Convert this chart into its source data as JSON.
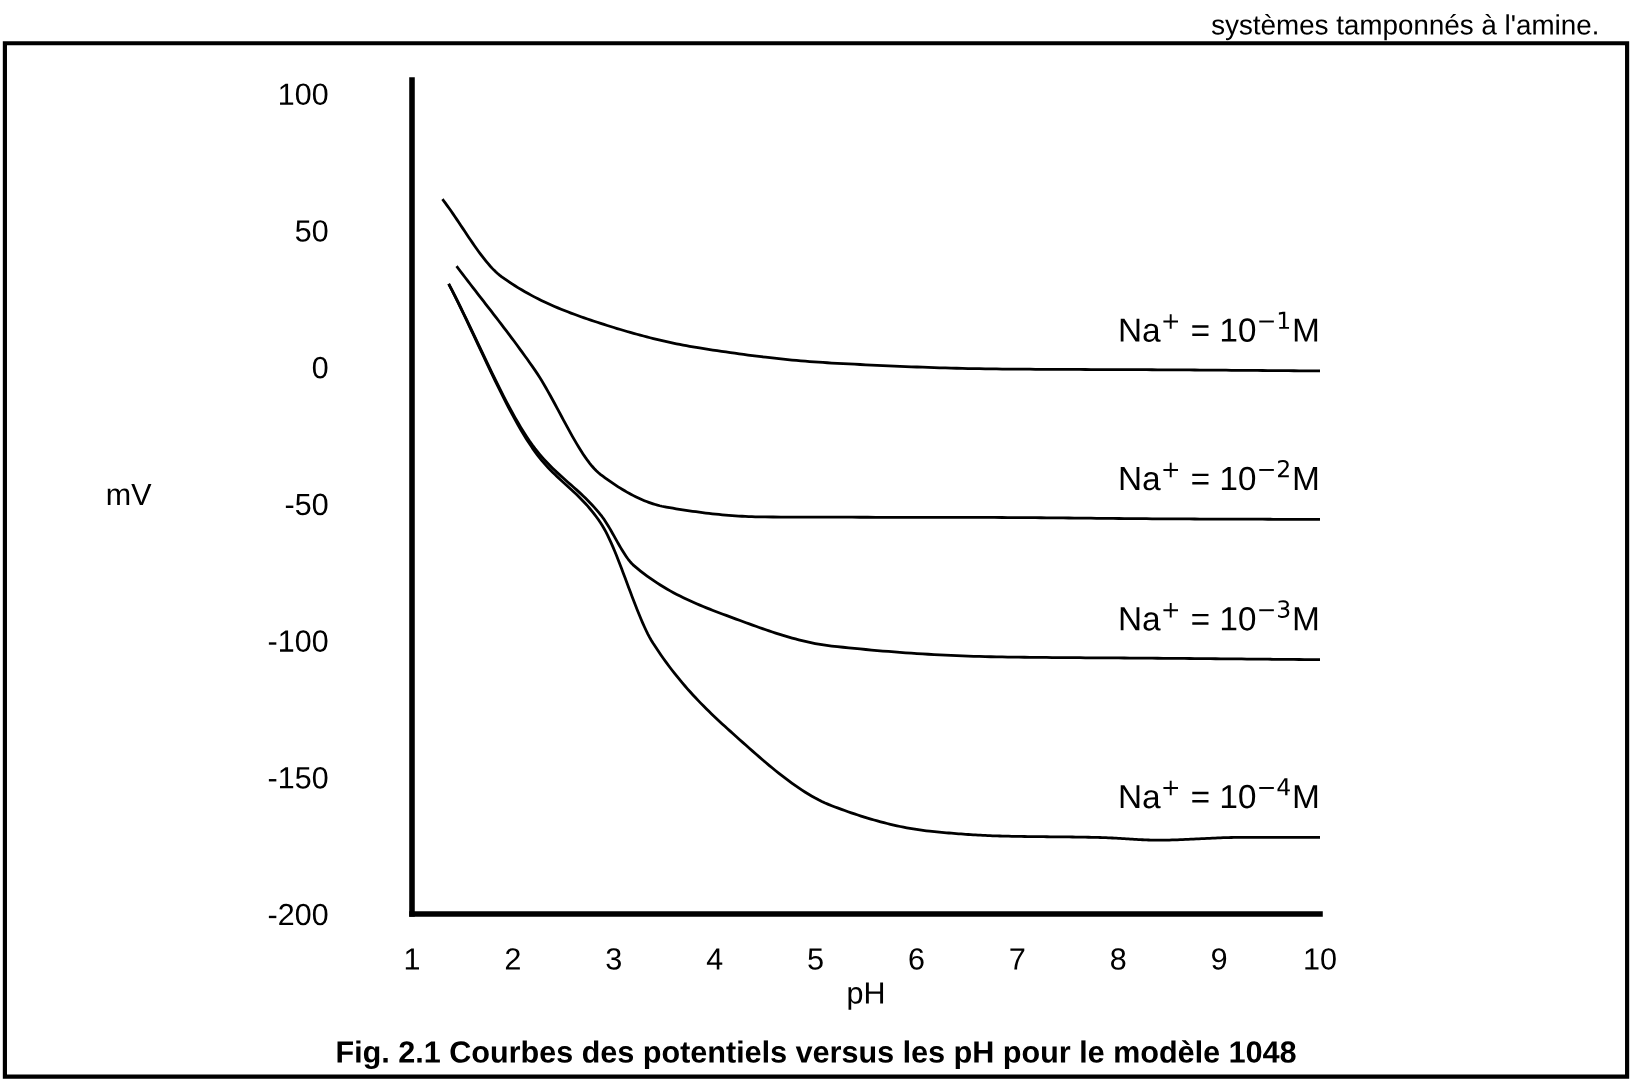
{
  "chart_data": {
    "type": "line",
    "title": "Fig. 2.1 Courbes des potentiels versus les pH pour le modèle 1048",
    "xlabel": "pH",
    "ylabel": "mV",
    "xlim": [
      1,
      10
    ],
    "ylim": [
      -200,
      105
    ],
    "xticks": [
      1,
      2,
      3,
      4,
      5,
      6,
      7,
      8,
      9,
      10
    ],
    "yticks": [
      -200,
      -150,
      -100,
      -50,
      0,
      50,
      100
    ],
    "grid": false,
    "legend": false,
    "marker": "none",
    "line_style": "solid",
    "series": [
      {
        "name": "Na$^{+}$ = 10$^{−1}$M",
        "color": "#000000",
        "x": [
          1.31,
          1.89,
          2.87,
          3.85,
          5.16,
          6.85,
          8.5,
          10
        ],
        "values": [
          61,
          33,
          16,
          7,
          1.5,
          -0.7,
          -1,
          -1.4
        ]
      },
      {
        "name": "Na$^{+}$ = 10$^{−2}$M",
        "color": "#000000",
        "x": [
          1.45,
          2.22,
          2.87,
          3.52,
          4.5,
          6.85,
          8.5,
          10
        ],
        "values": [
          36.5,
          -1.2,
          -39.3,
          -51.2,
          -54.8,
          -55,
          -55.5,
          -55.7
        ]
      },
      {
        "name": "Na$^{+}$ = 10$^{−3}$M",
        "color": "#000000",
        "x": [
          1.37,
          2.22,
          2.87,
          3.2,
          4.18,
          5.16,
          6.85,
          8.5,
          10
        ],
        "values": [
          30,
          -29.8,
          -54,
          -72.6,
          -91.7,
          -102,
          -106,
          -106.5,
          -107
        ]
      },
      {
        "name": "Na$^{+}$ = 10$^{−4}$M",
        "color": "#000000",
        "x": [
          1.37,
          2.22,
          2.87,
          3.39,
          4.18,
          5.16,
          6.13,
          6.85,
          7.8,
          8.4,
          9.2,
          10
        ],
        "values": [
          30,
          -31,
          -57,
          -101,
          -134,
          -160.4,
          -169.7,
          -171.5,
          -172,
          -173,
          -172,
          -172
        ]
      }
    ],
    "annotations": [
      "systèmes tamponnés à l'amine."
    ]
  }
}
